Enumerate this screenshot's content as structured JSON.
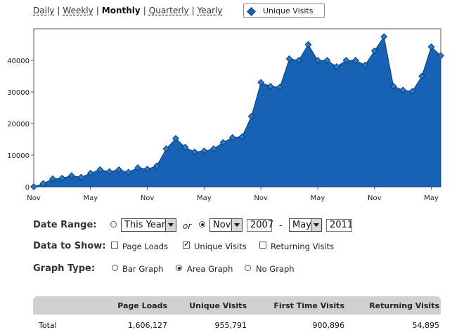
{
  "periods": {
    "daily": "Daily",
    "weekly": "Weekly",
    "monthly": "Monthly",
    "quarterly": "Quarterly",
    "yearly": "Yearly",
    "active": "Monthly",
    "separator": "|"
  },
  "legend": {
    "label": "Unique Visits",
    "color": "#1762b4"
  },
  "chart_data": {
    "type": "area",
    "series": [
      {
        "name": "Unique Visits",
        "color": "#1762b4",
        "values": [
          0,
          1000,
          2500,
          2700,
          3500,
          3000,
          4300,
          5400,
          4800,
          5400,
          4600,
          6000,
          5600,
          6600,
          12000,
          15300,
          12500,
          11000,
          11300,
          12000,
          14000,
          15600,
          15800,
          22300,
          33000,
          31800,
          31500,
          40500,
          40000,
          45000,
          40000,
          40000,
          38000,
          40000,
          40000,
          38500,
          43000,
          47500,
          31800,
          30600,
          30200,
          35000,
          44300,
          41500
        ]
      }
    ],
    "x_ticks": [
      "Nov",
      "May",
      "Nov",
      "May",
      "Nov",
      "May",
      "Nov",
      "May"
    ],
    "y_ticks": [
      "0",
      "10000",
      "20000",
      "30000",
      "40000"
    ],
    "ylim": [
      0,
      50000
    ],
    "grid": false
  },
  "form": {
    "date_range": {
      "label": "Date Range:",
      "preset_value": "This Year",
      "or_text": "or",
      "from_month": "Nov",
      "from_year": "2007",
      "dash": "-",
      "to_month": "May",
      "to_year": "2011"
    },
    "data_to_show": {
      "label": "Data to Show:",
      "page_loads": "Page Loads",
      "unique_visits": "Unique Visits",
      "returning_visits": "Returning Visits"
    },
    "graph_type": {
      "label": "Graph Type:",
      "bar_graph": "Bar Graph",
      "area_graph": "Area Graph",
      "no_graph": "No Graph"
    }
  },
  "table": {
    "headers": [
      "",
      "Page Loads",
      "Unique Visits",
      "First Time Visits",
      "Returning Visits"
    ],
    "rows": [
      [
        "Total",
        "1,606,127",
        "955,791",
        "900,896",
        "54,895"
      ]
    ]
  }
}
